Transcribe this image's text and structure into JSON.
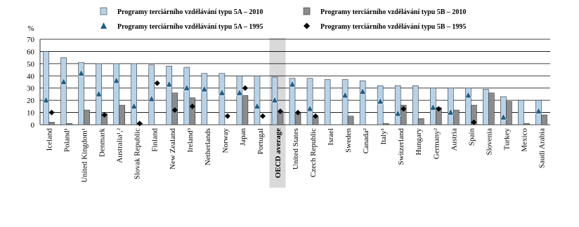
{
  "chart_data": {
    "type": "bar",
    "y_label": "%",
    "categories": [
      "Iceland",
      "Poland¹",
      "United Kingdom¹",
      "Denmark",
      "Australia¹,²",
      "Slovak Republic",
      "Finland",
      "New Zealand",
      "Ireland³",
      "Netherlands",
      "Norway",
      "Japan",
      "Portugal",
      "OECD average",
      "United States",
      "Czech Republic",
      "Israel",
      "Sweden",
      "Canada²",
      "Italy¹",
      "Switzerland",
      "Hungary",
      "Germany²",
      "Austria",
      "Spain",
      "Slovenia",
      "Turkey",
      "Mexico",
      "Saudi Arabia"
    ],
    "series": [
      {
        "name": "Programy terciárního vzdělávání typu 5A – 2010",
        "mark": "bar",
        "color": "#b7d3ea",
        "values": [
          60,
          55,
          51,
          50,
          50,
          50,
          49,
          48,
          47,
          42,
          42,
          40,
          40,
          39,
          38,
          38,
          37,
          37,
          36,
          32,
          32,
          32,
          30,
          30,
          30,
          29,
          23,
          20,
          20
        ]
      },
      {
        "name": "Programy terciárního vzdělávání typu 5B – 2010",
        "mark": "bar",
        "color": "#8c8c8c",
        "values": [
          2,
          1,
          12,
          9,
          16,
          1,
          null,
          26,
          22,
          null,
          0,
          24,
          0,
          11,
          10,
          7,
          null,
          7,
          null,
          1,
          16,
          5,
          14,
          12,
          16,
          26,
          19,
          1,
          8
        ]
      },
      {
        "name": "Programy terciárního vzdělávání typu 5A – 1995",
        "mark": "triangle",
        "color": "#1f5f8b",
        "values": [
          20,
          35,
          42,
          25,
          36,
          15,
          21,
          33,
          30,
          29,
          26,
          26,
          15,
          20,
          33,
          13,
          null,
          24,
          27,
          19,
          9,
          null,
          14,
          10,
          24,
          null,
          6,
          null,
          11
        ]
      },
      {
        "name": "Programy terciárního vzdělávání typu 5B – 1995",
        "mark": "diamond",
        "color": "#000000",
        "values": [
          10,
          null,
          null,
          8,
          null,
          1,
          34,
          12,
          15,
          null,
          7,
          30,
          7,
          11,
          10,
          7,
          null,
          null,
          null,
          null,
          13,
          null,
          13,
          null,
          2,
          null,
          null,
          null,
          null
        ]
      }
    ],
    "highlight_index": 13,
    "ylim": [
      0,
      70
    ],
    "yticks": [
      0,
      10,
      20,
      30,
      40,
      50,
      60,
      70
    ],
    "grid": true
  }
}
